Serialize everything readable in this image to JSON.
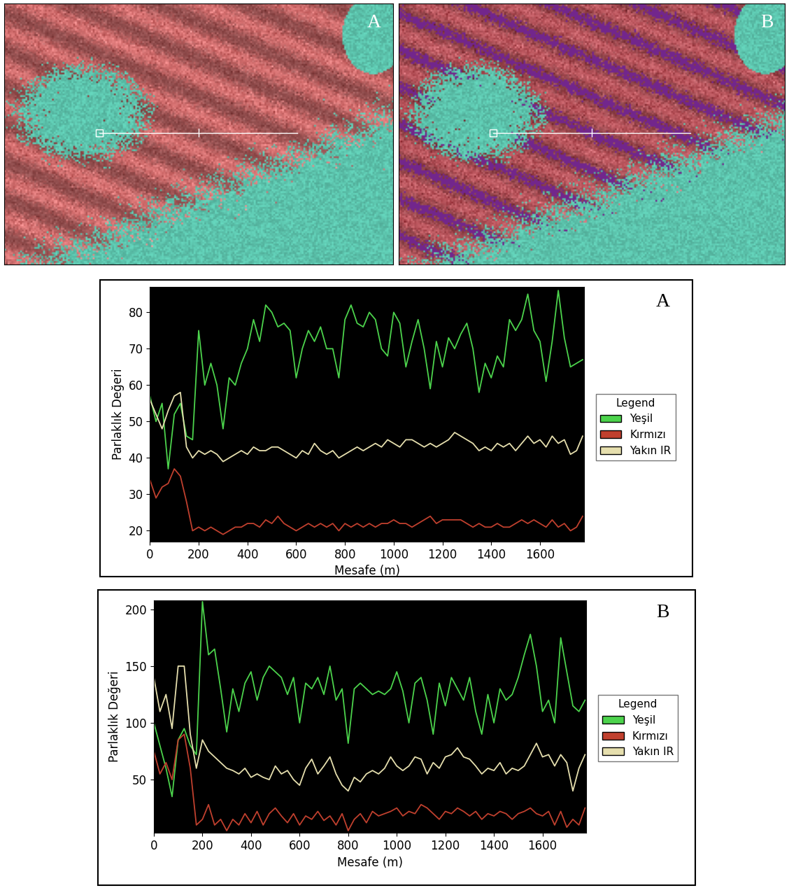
{
  "images": [
    {
      "label": "A"
    },
    {
      "label": "B"
    }
  ],
  "chart_data": [
    {
      "type": "line",
      "title": "A",
      "x_label": "Mesafe (m)",
      "y_label": "Parlaklık Değeri",
      "legend": "right",
      "legend_title": "Legend",
      "xlim": [
        0,
        1780
      ],
      "xticks": [
        0,
        200,
        400,
        600,
        800,
        1000,
        1200,
        1400,
        1600
      ],
      "ylim": [
        17,
        87
      ],
      "yticks": [
        20,
        30,
        40,
        50,
        60,
        70,
        80
      ],
      "x": [
        0,
        25,
        50,
        75,
        100,
        125,
        150,
        175,
        200,
        225,
        250,
        275,
        300,
        325,
        350,
        375,
        400,
        425,
        450,
        475,
        500,
        525,
        550,
        575,
        600,
        625,
        650,
        675,
        700,
        725,
        750,
        775,
        800,
        825,
        850,
        875,
        900,
        925,
        950,
        975,
        1000,
        1025,
        1050,
        1075,
        1100,
        1125,
        1150,
        1175,
        1200,
        1225,
        1250,
        1275,
        1300,
        1325,
        1350,
        1375,
        1400,
        1425,
        1450,
        1475,
        1500,
        1525,
        1550,
        1575,
        1600,
        1625,
        1650,
        1675,
        1700,
        1725,
        1750,
        1775
      ],
      "series": [
        {
          "name": "Yeşil",
          "color": "#4cd34c",
          "values": [
            57,
            50,
            55,
            37,
            52,
            55,
            46,
            45,
            75,
            60,
            66,
            60,
            48,
            62,
            60,
            66,
            70,
            78,
            72,
            82,
            80,
            76,
            77,
            75,
            62,
            70,
            75,
            72,
            76,
            70,
            70,
            62,
            78,
            82,
            77,
            76,
            80,
            78,
            70,
            68,
            80,
            77,
            65,
            72,
            78,
            70,
            59,
            72,
            65,
            73,
            70,
            74,
            77,
            70,
            58,
            66,
            62,
            68,
            65,
            78,
            75,
            78,
            85,
            75,
            72,
            61,
            72,
            86,
            73,
            65,
            66,
            67
          ]
        },
        {
          "name": "Kırmızı",
          "color": "#c0402e",
          "values": [
            34,
            29,
            32,
            33,
            37,
            35,
            28,
            20,
            21,
            20,
            21,
            20,
            19,
            20,
            21,
            21,
            22,
            22,
            21,
            23,
            22,
            24,
            22,
            21,
            20,
            21,
            22,
            21,
            22,
            21,
            22,
            20,
            22,
            21,
            22,
            21,
            22,
            21,
            22,
            22,
            23,
            22,
            22,
            21,
            22,
            23,
            24,
            22,
            23,
            23,
            23,
            23,
            22,
            21,
            22,
            21,
            21,
            22,
            21,
            21,
            22,
            23,
            22,
            23,
            22,
            21,
            23,
            21,
            22,
            20,
            21,
            24
          ]
        },
        {
          "name": "Yakın IR",
          "color": "#e6dfae",
          "values": [
            56,
            52,
            48,
            53,
            57,
            58,
            43,
            40,
            42,
            41,
            42,
            41,
            39,
            40,
            41,
            42,
            41,
            43,
            42,
            42,
            43,
            43,
            42,
            41,
            40,
            42,
            41,
            44,
            42,
            41,
            42,
            40,
            41,
            42,
            43,
            42,
            43,
            44,
            43,
            45,
            44,
            43,
            45,
            45,
            44,
            43,
            44,
            43,
            44,
            45,
            47,
            46,
            45,
            44,
            42,
            43,
            42,
            44,
            43,
            44,
            42,
            44,
            46,
            44,
            45,
            43,
            46,
            44,
            45,
            41,
            42,
            46
          ]
        }
      ]
    },
    {
      "type": "line",
      "title": "B",
      "x_label": "Mesafe (m)",
      "y_label": "Parlaklık Değeri",
      "legend": "right",
      "legend_title": "Legend",
      "xlim": [
        0,
        1780
      ],
      "xticks": [
        0,
        200,
        400,
        600,
        800,
        1000,
        1200,
        1400,
        1600
      ],
      "ylim": [
        3,
        208
      ],
      "yticks": [
        50,
        100,
        150,
        200
      ],
      "x": [
        0,
        25,
        50,
        75,
        100,
        125,
        150,
        175,
        200,
        225,
        250,
        275,
        300,
        325,
        350,
        375,
        400,
        425,
        450,
        475,
        500,
        525,
        550,
        575,
        600,
        625,
        650,
        675,
        700,
        725,
        750,
        775,
        800,
        825,
        850,
        875,
        900,
        925,
        950,
        975,
        1000,
        1025,
        1050,
        1075,
        1100,
        1125,
        1150,
        1175,
        1200,
        1225,
        1250,
        1275,
        1300,
        1325,
        1350,
        1375,
        1400,
        1425,
        1450,
        1475,
        1500,
        1525,
        1550,
        1575,
        1600,
        1625,
        1650,
        1675,
        1700,
        1725,
        1750,
        1775
      ],
      "series": [
        {
          "name": "Yeşil",
          "color": "#4cd34c",
          "values": [
            100,
            80,
            60,
            35,
            85,
            95,
            80,
            72,
            207,
            160,
            165,
            130,
            92,
            130,
            110,
            135,
            145,
            120,
            140,
            150,
            145,
            140,
            125,
            140,
            100,
            135,
            130,
            140,
            125,
            150,
            120,
            130,
            82,
            130,
            135,
            130,
            125,
            128,
            125,
            130,
            145,
            128,
            100,
            135,
            140,
            120,
            90,
            135,
            115,
            140,
            130,
            120,
            140,
            110,
            90,
            125,
            100,
            130,
            120,
            125,
            140,
            160,
            178,
            150,
            110,
            120,
            100,
            175,
            145,
            115,
            110,
            120
          ]
        },
        {
          "name": "Kırmızı",
          "color": "#c0402e",
          "values": [
            75,
            55,
            65,
            50,
            85,
            90,
            60,
            10,
            15,
            28,
            10,
            15,
            5,
            15,
            10,
            20,
            12,
            22,
            10,
            20,
            25,
            18,
            12,
            20,
            10,
            18,
            15,
            22,
            14,
            18,
            10,
            20,
            5,
            15,
            20,
            12,
            22,
            18,
            20,
            22,
            25,
            18,
            22,
            20,
            28,
            25,
            20,
            15,
            22,
            20,
            25,
            22,
            18,
            22,
            15,
            20,
            18,
            22,
            20,
            15,
            20,
            22,
            25,
            20,
            18,
            22,
            10,
            22,
            8,
            15,
            10,
            25
          ]
        },
        {
          "name": "Yakın IR",
          "color": "#e6dfae",
          "values": [
            140,
            110,
            125,
            95,
            150,
            150,
            90,
            60,
            85,
            75,
            70,
            65,
            60,
            58,
            55,
            60,
            52,
            55,
            52,
            50,
            62,
            55,
            58,
            50,
            45,
            60,
            68,
            55,
            62,
            70,
            55,
            45,
            40,
            52,
            48,
            55,
            58,
            55,
            60,
            70,
            62,
            58,
            62,
            70,
            68,
            55,
            65,
            60,
            70,
            72,
            78,
            70,
            68,
            62,
            55,
            60,
            58,
            65,
            55,
            60,
            58,
            62,
            72,
            82,
            70,
            72,
            62,
            72,
            65,
            40,
            60,
            72
          ]
        }
      ]
    }
  ]
}
